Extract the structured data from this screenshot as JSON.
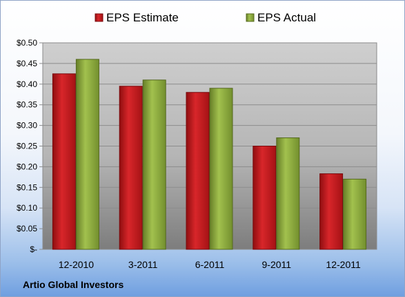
{
  "footer": {
    "company": "Artio Global Investors"
  },
  "colors": {
    "estimate": "#c0171b",
    "actual": "#8aa83c"
  },
  "chart_data": {
    "type": "bar",
    "categories": [
      "12-2010",
      "3-2011",
      "6-2011",
      "9-2011",
      "12-2011"
    ],
    "series": [
      {
        "name": "EPS Estimate",
        "values": [
          0.425,
          0.395,
          0.38,
          0.25,
          0.183
        ]
      },
      {
        "name": "EPS Actual",
        "values": [
          0.46,
          0.41,
          0.39,
          0.27,
          0.17
        ]
      }
    ],
    "yticks": [
      "$-",
      "$0.05",
      "$0.10",
      "$0.15",
      "$0.20",
      "$0.25",
      "$0.30",
      "$0.35",
      "$0.40",
      "$0.45",
      "$0.50"
    ],
    "ylim": [
      0,
      0.5
    ],
    "grid": true,
    "legend_position": "top"
  }
}
